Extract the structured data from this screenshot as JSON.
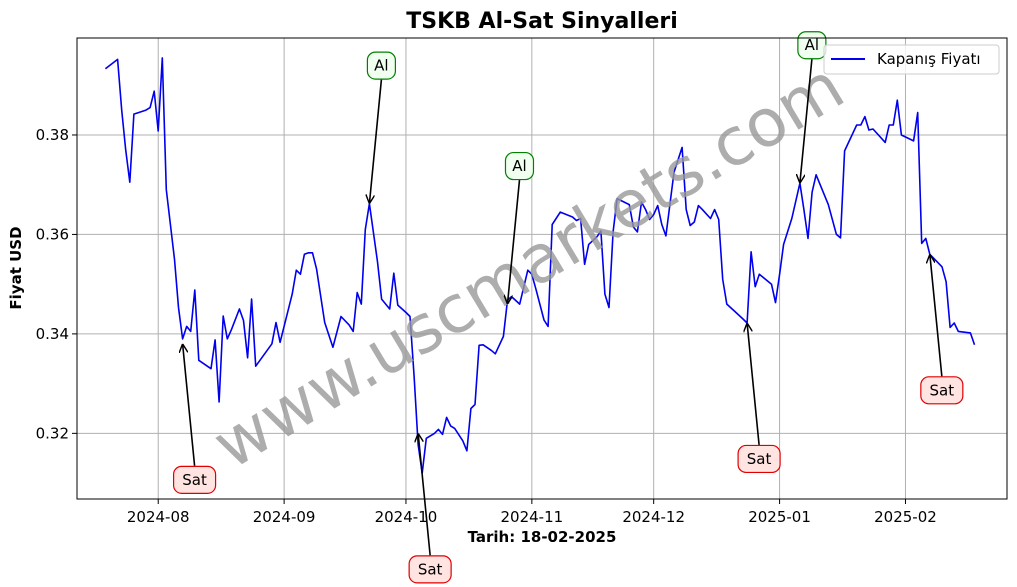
{
  "chart_data": {
    "type": "line",
    "title": "TSKB Al-Sat Sinyalleri",
    "xlabel": "Tarih: 18-02-2025",
    "ylabel": "Fiyat USD",
    "watermark": "www.uscmarkets.com",
    "ylim": [
      0.3068,
      0.3995
    ],
    "xlim": [
      "2024-07-12",
      "2025-02-26"
    ],
    "grid": true,
    "legend_position": "top-right",
    "x_ticks": [
      "2024-08-01",
      "2024-09-01",
      "2024-10-01",
      "2024-11-01",
      "2024-12-01",
      "2025-01-01",
      "2025-02-01"
    ],
    "x_tick_labels": [
      "2024-08",
      "2024-09",
      "2024-10",
      "2024-11",
      "2024-12",
      "2025-01",
      "2025-02"
    ],
    "y_ticks": [
      0.32,
      0.34,
      0.36,
      0.38
    ],
    "y_tick_labels": [
      "0.32",
      "0.34",
      "0.36",
      "0.38"
    ],
    "series": [
      {
        "name": "Kapanış Fiyatı",
        "color": "#0000ee",
        "points": [
          [
            "2024-07-19",
            0.3933
          ],
          [
            "2024-07-22",
            0.3952
          ],
          [
            "2024-07-23",
            0.385
          ],
          [
            "2024-07-24",
            0.377
          ],
          [
            "2024-07-25",
            0.3705
          ],
          [
            "2024-07-26",
            0.3842
          ],
          [
            "2024-07-29",
            0.385
          ],
          [
            "2024-07-30",
            0.3855
          ],
          [
            "2024-07-31",
            0.3888
          ],
          [
            "2024-08-01",
            0.3808
          ],
          [
            "2024-08-02",
            0.3955
          ],
          [
            "2024-08-03",
            0.369
          ],
          [
            "2024-08-05",
            0.355
          ],
          [
            "2024-08-06",
            0.3453
          ],
          [
            "2024-08-07",
            0.339
          ],
          [
            "2024-08-08",
            0.3415
          ],
          [
            "2024-08-09",
            0.3405
          ],
          [
            "2024-08-10",
            0.3488
          ],
          [
            "2024-08-11",
            0.3347
          ],
          [
            "2024-08-14",
            0.333
          ],
          [
            "2024-08-15",
            0.3388
          ],
          [
            "2024-08-16",
            0.3263
          ],
          [
            "2024-08-17",
            0.3436
          ],
          [
            "2024-08-18",
            0.339
          ],
          [
            "2024-08-19",
            0.3408
          ],
          [
            "2024-08-21",
            0.345
          ],
          [
            "2024-08-22",
            0.3427
          ],
          [
            "2024-08-23",
            0.3352
          ],
          [
            "2024-08-24",
            0.347
          ],
          [
            "2024-08-25",
            0.3335
          ],
          [
            "2024-08-29",
            0.338
          ],
          [
            "2024-08-30",
            0.3423
          ],
          [
            "2024-08-31",
            0.3383
          ],
          [
            "2024-09-03",
            0.348
          ],
          [
            "2024-09-04",
            0.3528
          ],
          [
            "2024-09-05",
            0.352
          ],
          [
            "2024-09-06",
            0.356
          ],
          [
            "2024-09-07",
            0.3563
          ],
          [
            "2024-09-08",
            0.3563
          ],
          [
            "2024-09-09",
            0.353
          ],
          [
            "2024-09-11",
            0.3423
          ],
          [
            "2024-09-13",
            0.3373
          ],
          [
            "2024-09-15",
            0.3435
          ],
          [
            "2024-09-17",
            0.3418
          ],
          [
            "2024-09-18",
            0.3405
          ],
          [
            "2024-09-19",
            0.3483
          ],
          [
            "2024-09-20",
            0.346
          ],
          [
            "2024-09-21",
            0.361
          ],
          [
            "2024-09-22",
            0.3662
          ],
          [
            "2024-09-24",
            0.3545
          ],
          [
            "2024-09-25",
            0.347
          ],
          [
            "2024-09-27",
            0.345
          ],
          [
            "2024-09-28",
            0.3522
          ],
          [
            "2024-09-29",
            0.3458
          ],
          [
            "2024-10-01",
            0.3443
          ],
          [
            "2024-10-02",
            0.3435
          ],
          [
            "2024-10-03",
            0.3315
          ],
          [
            "2024-10-04",
            0.3178
          ],
          [
            "2024-10-05",
            0.312
          ],
          [
            "2024-10-06",
            0.319
          ],
          [
            "2024-10-08",
            0.32
          ],
          [
            "2024-10-09",
            0.3208
          ],
          [
            "2024-10-10",
            0.3198
          ],
          [
            "2024-10-11",
            0.3232
          ],
          [
            "2024-10-12",
            0.3215
          ],
          [
            "2024-10-13",
            0.321
          ],
          [
            "2024-10-15",
            0.3185
          ],
          [
            "2024-10-16",
            0.3165
          ],
          [
            "2024-10-17",
            0.325
          ],
          [
            "2024-10-18",
            0.3258
          ],
          [
            "2024-10-19",
            0.3377
          ],
          [
            "2024-10-20",
            0.3378
          ],
          [
            "2024-10-22",
            0.3367
          ],
          [
            "2024-10-23",
            0.336
          ],
          [
            "2024-10-25",
            0.3395
          ],
          [
            "2024-10-26",
            0.3468
          ],
          [
            "2024-10-27",
            0.3475
          ],
          [
            "2024-10-29",
            0.346
          ],
          [
            "2024-10-31",
            0.3528
          ],
          [
            "2024-11-01",
            0.352
          ],
          [
            "2024-11-02",
            0.349
          ],
          [
            "2024-11-04",
            0.3428
          ],
          [
            "2024-11-05",
            0.3415
          ],
          [
            "2024-11-06",
            0.362
          ],
          [
            "2024-11-08",
            0.3645
          ],
          [
            "2024-11-11",
            0.3635
          ],
          [
            "2024-11-12",
            0.3628
          ],
          [
            "2024-11-13",
            0.3632
          ],
          [
            "2024-11-14",
            0.354
          ],
          [
            "2024-11-15",
            0.358
          ],
          [
            "2024-11-17",
            0.3595
          ],
          [
            "2024-11-18",
            0.3607
          ],
          [
            "2024-11-19",
            0.348
          ],
          [
            "2024-11-20",
            0.3453
          ],
          [
            "2024-11-21",
            0.3605
          ],
          [
            "2024-11-22",
            0.3672
          ],
          [
            "2024-11-25",
            0.366
          ],
          [
            "2024-11-26",
            0.3615
          ],
          [
            "2024-11-27",
            0.3605
          ],
          [
            "2024-11-28",
            0.3665
          ],
          [
            "2024-11-29",
            0.365
          ],
          [
            "2024-11-30",
            0.363
          ],
          [
            "2024-12-01",
            0.364
          ],
          [
            "2024-12-02",
            0.3658
          ],
          [
            "2024-12-03",
            0.362
          ],
          [
            "2024-12-04",
            0.3597
          ],
          [
            "2024-12-06",
            0.3725
          ],
          [
            "2024-12-08",
            0.3775
          ],
          [
            "2024-12-09",
            0.365
          ],
          [
            "2024-12-10",
            0.3618
          ],
          [
            "2024-12-11",
            0.3625
          ],
          [
            "2024-12-12",
            0.3658
          ],
          [
            "2024-12-13",
            0.365
          ],
          [
            "2024-12-15",
            0.3632
          ],
          [
            "2024-12-16",
            0.365
          ],
          [
            "2024-12-17",
            0.363
          ],
          [
            "2024-12-18",
            0.351
          ],
          [
            "2024-12-19",
            0.346
          ],
          [
            "2024-12-21",
            0.3445
          ],
          [
            "2024-12-23",
            0.343
          ],
          [
            "2024-12-24",
            0.3422
          ],
          [
            "2024-12-25",
            0.3565
          ],
          [
            "2024-12-26",
            0.3495
          ],
          [
            "2024-12-27",
            0.352
          ],
          [
            "2024-12-30",
            0.35
          ],
          [
            "2024-12-31",
            0.3463
          ],
          [
            "2025-01-01",
            0.352
          ],
          [
            "2025-01-02",
            0.358
          ],
          [
            "2025-01-04",
            0.3632
          ],
          [
            "2025-01-06",
            0.3703
          ],
          [
            "2025-01-07",
            0.365
          ],
          [
            "2025-01-08",
            0.3592
          ],
          [
            "2025-01-09",
            0.3685
          ],
          [
            "2025-01-10",
            0.372
          ],
          [
            "2025-01-13",
            0.366
          ],
          [
            "2025-01-15",
            0.36
          ],
          [
            "2025-01-16",
            0.3593
          ],
          [
            "2025-01-17",
            0.3768
          ],
          [
            "2025-01-20",
            0.382
          ],
          [
            "2025-01-21",
            0.382
          ],
          [
            "2025-01-22",
            0.3837
          ],
          [
            "2025-01-23",
            0.381
          ],
          [
            "2025-01-24",
            0.3812
          ],
          [
            "2025-01-27",
            0.3785
          ],
          [
            "2025-01-28",
            0.382
          ],
          [
            "2025-01-29",
            0.382
          ],
          [
            "2025-01-30",
            0.387
          ],
          [
            "2025-01-31",
            0.38
          ],
          [
            "2025-02-03",
            0.3788
          ],
          [
            "2025-02-04",
            0.3845
          ],
          [
            "2025-02-05",
            0.3582
          ],
          [
            "2025-02-06",
            0.3592
          ],
          [
            "2025-02-07",
            0.356
          ],
          [
            "2025-02-10",
            0.3535
          ],
          [
            "2025-02-11",
            0.3505
          ],
          [
            "2025-02-12",
            0.3413
          ],
          [
            "2025-02-13",
            0.3422
          ],
          [
            "2025-02-14",
            0.3405
          ],
          [
            "2025-02-17",
            0.3402
          ],
          [
            "2025-02-18",
            0.3378
          ]
        ]
      }
    ],
    "annotations": [
      {
        "label": "Sat",
        "type": "sell",
        "x": "2024-08-07",
        "y": 0.338
      },
      {
        "label": "Al",
        "type": "buy",
        "x": "2024-09-22",
        "y": 0.3662
      },
      {
        "label": "Sat",
        "type": "sell",
        "x": "2024-10-04",
        "y": 0.32
      },
      {
        "label": "Al",
        "type": "buy",
        "x": "2024-10-26",
        "y": 0.346
      },
      {
        "label": "Sat",
        "type": "sell",
        "x": "2024-12-24",
        "y": 0.3422
      },
      {
        "label": "Al",
        "type": "buy",
        "x": "2025-01-06",
        "y": 0.3703
      },
      {
        "label": "Sat",
        "type": "sell",
        "x": "2025-02-07",
        "y": 0.356
      }
    ],
    "colors": {
      "sell_border": "#e00000",
      "sell_fill": "#ffe4e1",
      "buy_border": "#008000",
      "buy_fill": "#f0fff0",
      "watermark": "#999999"
    }
  }
}
